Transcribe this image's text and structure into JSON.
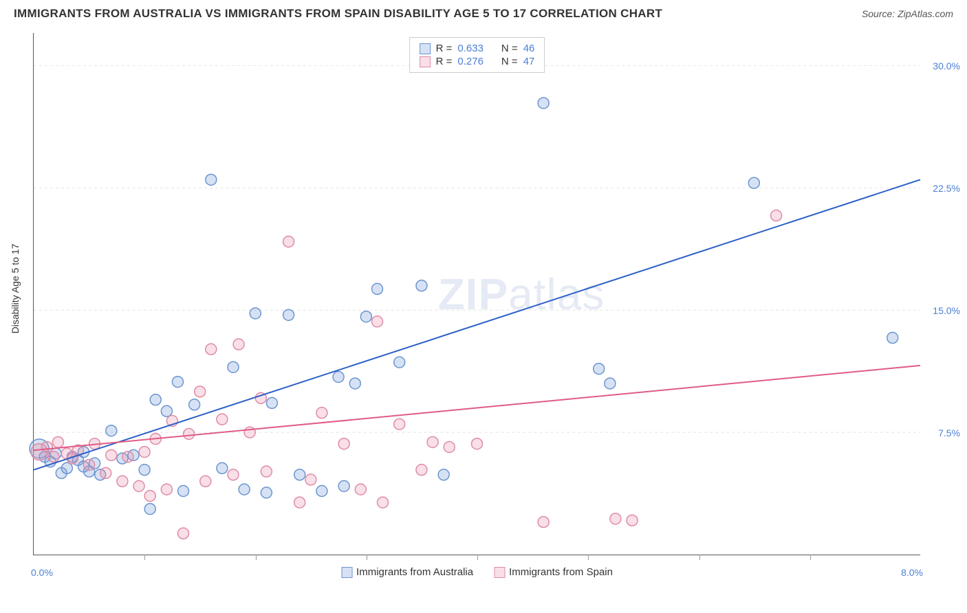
{
  "title": "IMMIGRANTS FROM AUSTRALIA VS IMMIGRANTS FROM SPAIN DISABILITY AGE 5 TO 17 CORRELATION CHART",
  "source": "Source: ZipAtlas.com",
  "watermark": "ZIPatlas",
  "chart": {
    "type": "scatter",
    "yaxis_label": "Disability Age 5 to 17",
    "xlim": [
      0,
      8.0
    ],
    "ylim": [
      0,
      32.0
    ],
    "x_min_label": "0.0%",
    "x_max_label": "8.0%",
    "y_ticks": [
      7.5,
      15.0,
      22.5,
      30.0
    ],
    "y_tick_labels": [
      "7.5%",
      "15.0%",
      "22.5%",
      "30.0%"
    ],
    "x_ticks_minor": [
      1.0,
      2.0,
      3.0,
      4.0,
      5.0,
      6.0,
      7.0
    ],
    "grid_color": "#e2e2e2",
    "background_color": "#ffffff",
    "axis_color": "#555555",
    "label_color": "#4a7fd6",
    "marker_radius": 8,
    "marker_stroke_width": 1.5,
    "line_width": 2,
    "series": [
      {
        "name": "Immigrants from Australia",
        "fill": "rgba(120,160,220,0.30)",
        "stroke": "#6b94d0",
        "line_color": "#2a5fc8",
        "R": 0.633,
        "N": 46,
        "trend": {
          "x1": 0.0,
          "y1": 5.2,
          "x2": 8.0,
          "y2": 23.0
        },
        "points": [
          {
            "x": 0.05,
            "y": 6.5,
            "r": 14
          },
          {
            "x": 0.1,
            "y": 6.0
          },
          {
            "x": 0.15,
            "y": 5.7
          },
          {
            "x": 0.2,
            "y": 6.2
          },
          {
            "x": 0.25,
            "y": 5.0
          },
          {
            "x": 0.3,
            "y": 5.3
          },
          {
            "x": 0.35,
            "y": 6.0
          },
          {
            "x": 0.4,
            "y": 5.8
          },
          {
            "x": 0.45,
            "y": 5.4
          },
          {
            "x": 0.5,
            "y": 5.1
          },
          {
            "x": 0.55,
            "y": 5.6
          },
          {
            "x": 0.6,
            "y": 4.9
          },
          {
            "x": 0.7,
            "y": 7.6
          },
          {
            "x": 0.8,
            "y": 5.9
          },
          {
            "x": 0.9,
            "y": 6.1
          },
          {
            "x": 1.0,
            "y": 5.2
          },
          {
            "x": 1.05,
            "y": 2.8
          },
          {
            "x": 1.1,
            "y": 9.5
          },
          {
            "x": 1.2,
            "y": 8.8
          },
          {
            "x": 1.3,
            "y": 10.6
          },
          {
            "x": 1.35,
            "y": 3.9
          },
          {
            "x": 1.45,
            "y": 9.2
          },
          {
            "x": 1.6,
            "y": 23.0
          },
          {
            "x": 1.7,
            "y": 5.3
          },
          {
            "x": 1.8,
            "y": 11.5
          },
          {
            "x": 1.9,
            "y": 4.0
          },
          {
            "x": 2.0,
            "y": 14.8
          },
          {
            "x": 2.1,
            "y": 3.8
          },
          {
            "x": 2.15,
            "y": 9.3
          },
          {
            "x": 2.3,
            "y": 14.7
          },
          {
            "x": 2.4,
            "y": 4.9
          },
          {
            "x": 2.6,
            "y": 3.9
          },
          {
            "x": 2.75,
            "y": 10.9
          },
          {
            "x": 2.8,
            "y": 4.2
          },
          {
            "x": 2.9,
            "y": 10.5
          },
          {
            "x": 3.0,
            "y": 14.6
          },
          {
            "x": 3.1,
            "y": 16.3
          },
          {
            "x": 3.3,
            "y": 11.8
          },
          {
            "x": 3.5,
            "y": 16.5
          },
          {
            "x": 3.7,
            "y": 4.9
          },
          {
            "x": 4.6,
            "y": 27.7
          },
          {
            "x": 5.1,
            "y": 11.4
          },
          {
            "x": 5.2,
            "y": 10.5
          },
          {
            "x": 6.5,
            "y": 22.8
          },
          {
            "x": 7.75,
            "y": 13.3
          },
          {
            "x": 0.45,
            "y": 6.3
          }
        ]
      },
      {
        "name": "Immigrants from Spain",
        "fill": "rgba(235,150,175,0.30)",
        "stroke": "#de8ca5",
        "line_color": "#e05a84",
        "R": 0.276,
        "N": 47,
        "trend": {
          "x1": 0.0,
          "y1": 6.4,
          "x2": 8.0,
          "y2": 11.6
        },
        "points": [
          {
            "x": 0.05,
            "y": 6.3,
            "r": 12
          },
          {
            "x": 0.12,
            "y": 6.6
          },
          {
            "x": 0.18,
            "y": 6.0
          },
          {
            "x": 0.22,
            "y": 6.9
          },
          {
            "x": 0.3,
            "y": 6.2
          },
          {
            "x": 0.35,
            "y": 5.9
          },
          {
            "x": 0.4,
            "y": 6.4
          },
          {
            "x": 0.5,
            "y": 5.5
          },
          {
            "x": 0.55,
            "y": 6.8
          },
          {
            "x": 0.65,
            "y": 5.0
          },
          {
            "x": 0.7,
            "y": 6.1
          },
          {
            "x": 0.8,
            "y": 4.5
          },
          {
            "x": 0.85,
            "y": 6.0
          },
          {
            "x": 0.95,
            "y": 4.2
          },
          {
            "x": 1.0,
            "y": 6.3
          },
          {
            "x": 1.05,
            "y": 3.6
          },
          {
            "x": 1.1,
            "y": 7.1
          },
          {
            "x": 1.2,
            "y": 4.0
          },
          {
            "x": 1.25,
            "y": 8.2
          },
          {
            "x": 1.35,
            "y": 1.3
          },
          {
            "x": 1.4,
            "y": 7.4
          },
          {
            "x": 1.5,
            "y": 10.0
          },
          {
            "x": 1.55,
            "y": 4.5
          },
          {
            "x": 1.6,
            "y": 12.6
          },
          {
            "x": 1.7,
            "y": 8.3
          },
          {
            "x": 1.8,
            "y": 4.9
          },
          {
            "x": 1.85,
            "y": 12.9
          },
          {
            "x": 1.95,
            "y": 7.5
          },
          {
            "x": 2.05,
            "y": 9.6
          },
          {
            "x": 2.1,
            "y": 5.1
          },
          {
            "x": 2.3,
            "y": 19.2
          },
          {
            "x": 2.4,
            "y": 3.2
          },
          {
            "x": 2.5,
            "y": 4.6
          },
          {
            "x": 2.6,
            "y": 8.7
          },
          {
            "x": 2.8,
            "y": 6.8
          },
          {
            "x": 2.95,
            "y": 4.0
          },
          {
            "x": 3.1,
            "y": 14.3
          },
          {
            "x": 3.15,
            "y": 3.2
          },
          {
            "x": 3.3,
            "y": 8.0
          },
          {
            "x": 3.5,
            "y": 5.2
          },
          {
            "x": 3.6,
            "y": 6.9
          },
          {
            "x": 3.75,
            "y": 6.6
          },
          {
            "x": 4.0,
            "y": 6.8
          },
          {
            "x": 4.6,
            "y": 2.0
          },
          {
            "x": 5.25,
            "y": 2.2
          },
          {
            "x": 5.4,
            "y": 2.1
          },
          {
            "x": 6.7,
            "y": 20.8
          }
        ]
      }
    ]
  },
  "legend": {
    "series1": "Immigrants from Australia",
    "series2": "Immigrants from Spain"
  },
  "correlation_box": {
    "rows": [
      {
        "swatch_fill": "rgba(120,160,220,0.30)",
        "swatch_stroke": "#6b94d0",
        "R_label": "R =",
        "R": "0.633",
        "N_label": "N =",
        "N": "46"
      },
      {
        "swatch_fill": "rgba(235,150,175,0.30)",
        "swatch_stroke": "#de8ca5",
        "R_label": "R =",
        "R": "0.276",
        "N_label": "N =",
        "N": "47"
      }
    ]
  }
}
